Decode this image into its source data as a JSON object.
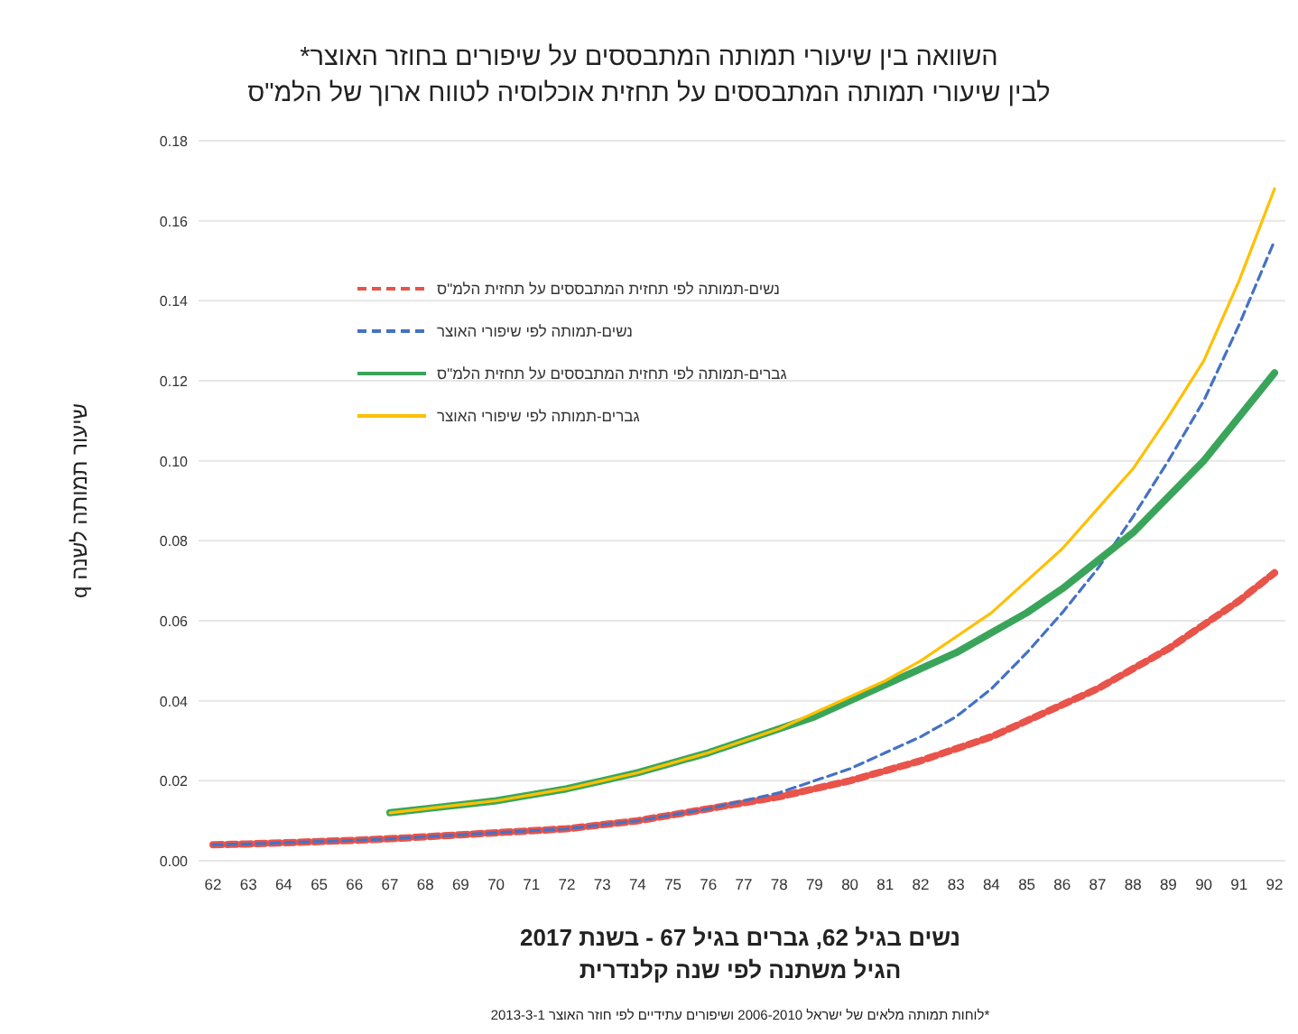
{
  "chart_data": {
    "type": "line",
    "title": "השוואה בין שיעורי תמותה המתבססים על שיפורים בחוזר האוצר*",
    "subtitle": "לבין שיעורי תמותה המתבססים על תחזית אוכלוסיה לטווח ארוך של הלמ\"ס",
    "xlabel": "נשים בגיל 62, גברים בגיל 67 - בשנת 2017",
    "ylabel": "שיעור תמותה לשנה q",
    "annotations": [
      "הגיל משתנה לפי שנה קלנדרית",
      "*לוחות תמותה מלאים של ישראל 2006-2010 ושיפורים עתידיים לפי חוזר האוצר 2013-3-1"
    ],
    "categories": [
      "62",
      "63",
      "64",
      "65",
      "66",
      "67",
      "68",
      "69",
      "70",
      "71",
      "72",
      "73",
      "74",
      "75",
      "76",
      "77",
      "78",
      "79",
      "80",
      "81",
      "82",
      "83",
      "84",
      "85",
      "86",
      "87",
      "88",
      "89",
      "90",
      "91",
      "92"
    ],
    "ylim": [
      0,
      0.18
    ],
    "yticks": [
      {
        "value": 0,
        "label": "0.00"
      },
      {
        "value": 0.02,
        "label": "0.02"
      },
      {
        "value": 0.04,
        "label": "0.04"
      },
      {
        "value": 0.06,
        "label": "0.06"
      },
      {
        "value": 0.08,
        "label": "0.08"
      },
      {
        "value": 0.1,
        "label": "0.10"
      },
      {
        "value": 0.12,
        "label": "0.12"
      },
      {
        "value": 0.14,
        "label": "0.14"
      },
      {
        "value": 0.16,
        "label": "0.16"
      },
      {
        "value": 0.18,
        "label": "0.18"
      }
    ],
    "grid": "y",
    "legend": "top left",
    "series": [
      {
        "name": "נשים-תמותה לפי תחזית המתבססים על תחזית הלמ\"ס",
        "color": "#e8534a",
        "line_style": "dashed",
        "values": [
          0.004,
          0.0042,
          0.0045,
          0.0048,
          0.0051,
          0.0055,
          0.006,
          0.0065,
          0.007,
          0.0075,
          0.008,
          0.009,
          0.01,
          0.0115,
          0.013,
          0.0145,
          0.016,
          0.018,
          0.02,
          0.0225,
          0.025,
          0.028,
          0.031,
          0.035,
          0.039,
          0.043,
          0.048,
          0.053,
          0.059,
          0.065,
          0.072
        ]
      },
      {
        "name": "נשים-תמותה לפי שיפורי האוצר",
        "color": "#4472c4",
        "line_style": "dashed",
        "values": [
          0.004,
          0.0042,
          0.0045,
          0.0048,
          0.0051,
          0.0055,
          0.006,
          0.0065,
          0.007,
          0.0075,
          0.008,
          0.009,
          0.01,
          0.0115,
          0.013,
          0.015,
          0.017,
          0.02,
          0.023,
          0.027,
          0.031,
          0.036,
          0.043,
          0.052,
          0.062,
          0.073,
          0.086,
          0.1,
          0.115,
          0.134,
          0.155
        ]
      },
      {
        "name": "גברים-תמותה לפי תחזית המתבססים על תחזית הלמ\"ס",
        "color": "#3aa55a",
        "line_style": "solid",
        "values": [
          null,
          null,
          null,
          null,
          null,
          0.012,
          0.013,
          0.014,
          0.015,
          0.0165,
          0.018,
          0.02,
          0.022,
          0.0245,
          0.027,
          0.03,
          0.033,
          0.036,
          0.04,
          0.044,
          0.048,
          0.052,
          0.057,
          0.062,
          0.068,
          0.075,
          0.082,
          0.091,
          0.1,
          0.111,
          0.122
        ]
      },
      {
        "name": "גברים-תמותה לפי שיפורי האוצר",
        "color": "#ffc000",
        "line_style": "solid",
        "values": [
          null,
          null,
          null,
          null,
          null,
          0.012,
          0.013,
          0.014,
          0.015,
          0.0165,
          0.018,
          0.02,
          0.022,
          0.0245,
          0.027,
          0.03,
          0.033,
          0.037,
          0.041,
          0.045,
          0.05,
          0.056,
          0.062,
          0.07,
          0.078,
          0.088,
          0.098,
          0.111,
          0.125,
          0.145,
          0.168
        ]
      }
    ]
  }
}
